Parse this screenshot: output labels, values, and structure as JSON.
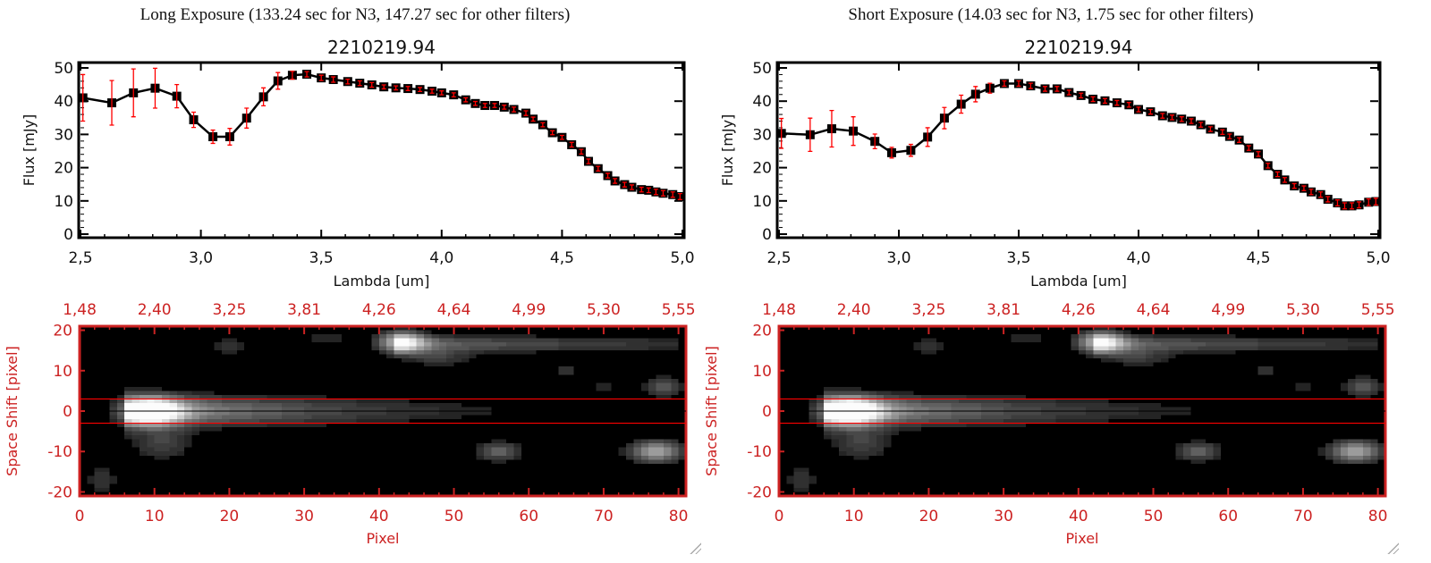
{
  "colors": {
    "axis": "#000000",
    "errorbar": "#ff0000",
    "image_axis": "#cc2222",
    "extraction_lines": "#ff0000",
    "center_line": "#000000"
  },
  "panels": [
    {
      "heading": "Long Exposure (133.24 sec for N3, 147.27 sec for other filters)"
    },
    {
      "heading": "Short Exposure (14.03 sec for N3, 1.75 sec for other filters)"
    }
  ],
  "chart_data": [
    {
      "type": "line",
      "title": "2210219.94",
      "xlabel": "Lambda [um]",
      "ylabel": "Flux [mJy]",
      "xlim": [
        2.5,
        5.0
      ],
      "ylim": [
        0,
        50
      ],
      "xticks": [
        "2,5",
        "3,0",
        "3,5",
        "4,0",
        "4,5",
        "5,0"
      ],
      "xtick_values": [
        2.5,
        3.0,
        3.5,
        4.0,
        4.5,
        5.0
      ],
      "yticks": [
        "0",
        "10",
        "20",
        "30",
        "40",
        "50"
      ],
      "ytick_values": [
        0,
        10,
        20,
        30,
        40,
        50
      ],
      "x": [
        2.51,
        2.63,
        2.72,
        2.81,
        2.9,
        2.97,
        3.05,
        3.12,
        3.19,
        3.26,
        3.32,
        3.38,
        3.44,
        3.5,
        3.55,
        3.61,
        3.66,
        3.71,
        3.76,
        3.81,
        3.86,
        3.91,
        3.96,
        4.0,
        4.05,
        4.1,
        4.14,
        4.18,
        4.22,
        4.26,
        4.3,
        4.35,
        4.38,
        4.42,
        4.46,
        4.5,
        4.54,
        4.58,
        4.61,
        4.65,
        4.69,
        4.72,
        4.76,
        4.79,
        4.83,
        4.86,
        4.89,
        4.92,
        4.96,
        4.99
      ],
      "y": [
        41.0,
        39.5,
        42.5,
        43.9,
        41.5,
        34.4,
        29.3,
        29.3,
        34.9,
        41.3,
        46.1,
        47.8,
        48.1,
        47.0,
        46.5,
        45.9,
        45.4,
        44.9,
        44.3,
        44.0,
        43.8,
        43.5,
        43.0,
        42.5,
        41.9,
        40.4,
        39.3,
        38.7,
        38.7,
        38.2,
        37.5,
        36.4,
        34.6,
        32.9,
        30.5,
        29.1,
        26.9,
        24.8,
        21.9,
        19.7,
        17.6,
        16.0,
        14.9,
        14.1,
        13.4,
        13.2,
        12.7,
        12.3,
        11.9,
        11.3
      ],
      "yerr": [
        7.0,
        6.7,
        7.2,
        6.0,
        3.5,
        2.3,
        2.0,
        2.5,
        3.0,
        2.7,
        2.5,
        1.2,
        0.8,
        0.8,
        0.8,
        0.7,
        0.7,
        0.7,
        0.6,
        0.6,
        0.6,
        0.6,
        0.6,
        0.6,
        0.6,
        0.6,
        0.6,
        0.6,
        0.6,
        0.6,
        0.7,
        0.7,
        0.6,
        0.6,
        0.6,
        0.6,
        0.7,
        0.7,
        0.7,
        0.7,
        0.7,
        0.7,
        0.7,
        0.7,
        0.7,
        0.7,
        0.8,
        0.8,
        0.8,
        0.9
      ]
    },
    {
      "type": "line",
      "title": "2210219.94",
      "xlabel": "Lambda [um]",
      "ylabel": "Flux [mJy]",
      "xlim": [
        2.5,
        5.0
      ],
      "ylim": [
        0,
        50
      ],
      "xticks": [
        "2,5",
        "3,0",
        "3,5",
        "4,0",
        "4,5",
        "5,0"
      ],
      "xtick_values": [
        2.5,
        3.0,
        3.5,
        4.0,
        4.5,
        5.0
      ],
      "yticks": [
        "0",
        "10",
        "20",
        "30",
        "40",
        "50"
      ],
      "ytick_values": [
        0,
        10,
        20,
        30,
        40,
        50
      ],
      "x": [
        2.51,
        2.63,
        2.72,
        2.81,
        2.9,
        2.97,
        3.05,
        3.12,
        3.19,
        3.26,
        3.32,
        3.38,
        3.44,
        3.5,
        3.55,
        3.61,
        3.66,
        3.71,
        3.76,
        3.81,
        3.86,
        3.91,
        3.96,
        4.0,
        4.05,
        4.1,
        4.14,
        4.18,
        4.22,
        4.26,
        4.3,
        4.35,
        4.38,
        4.42,
        4.46,
        4.5,
        4.54,
        4.58,
        4.61,
        4.65,
        4.69,
        4.72,
        4.76,
        4.79,
        4.83,
        4.86,
        4.89,
        4.92,
        4.96,
        4.99
      ],
      "y": [
        30.3,
        29.9,
        31.7,
        31.0,
        27.9,
        24.5,
        25.2,
        29.2,
        34.9,
        39.1,
        42.1,
        43.9,
        45.3,
        45.3,
        44.6,
        43.7,
        43.7,
        42.6,
        41.7,
        40.6,
        40.1,
        39.5,
        38.9,
        37.5,
        36.8,
        35.6,
        35.1,
        34.6,
        34.0,
        32.9,
        31.6,
        30.7,
        29.4,
        28.3,
        25.9,
        24.1,
        20.6,
        18.0,
        16.3,
        14.5,
        13.8,
        12.7,
        11.9,
        10.5,
        9.4,
        8.5,
        8.5,
        8.8,
        9.6,
        9.8
      ],
      "yerr": [
        4.5,
        5.0,
        5.5,
        4.3,
        2.2,
        1.6,
        1.8,
        2.8,
        3.2,
        2.7,
        2.3,
        1.5,
        0.8,
        0.8,
        0.8,
        0.7,
        0.7,
        0.7,
        0.7,
        0.7,
        0.7,
        0.7,
        0.7,
        0.7,
        0.7,
        0.7,
        0.7,
        0.7,
        0.7,
        0.7,
        0.7,
        0.7,
        0.7,
        0.7,
        0.7,
        0.7,
        0.7,
        0.7,
        0.7,
        0.7,
        0.7,
        0.8,
        0.8,
        0.8,
        0.9,
        0.9,
        0.9,
        0.9,
        1.0,
        1.0
      ]
    },
    {
      "type": "heatmap",
      "xlabel": "Pixel",
      "ylabel": "Space Shift [pixel]",
      "xlim": [
        0,
        81
      ],
      "ylim": [
        -21,
        21
      ],
      "xticks": [
        "0",
        "10",
        "20",
        "30",
        "40",
        "50",
        "60",
        "70",
        "80"
      ],
      "xtick_values": [
        0,
        10,
        20,
        30,
        40,
        50,
        60,
        70,
        80
      ],
      "top_ticks": [
        "1,48",
        "2,40",
        "3,25",
        "3,81",
        "4,26",
        "4,64",
        "4,99",
        "5,30",
        "5,55"
      ],
      "yticks": [
        "-20",
        "-10",
        "0",
        "10",
        "20"
      ],
      "ytick_values": [
        -20,
        -10,
        0,
        10,
        20
      ],
      "extraction_lines": [
        -3,
        3
      ],
      "center_line": 0,
      "colormap": "grayscale"
    },
    {
      "type": "heatmap",
      "xlabel": "Pixel",
      "ylabel": "Space Shift [pixel]",
      "xlim": [
        0,
        81
      ],
      "ylim": [
        -21,
        21
      ],
      "xticks": [
        "0",
        "10",
        "20",
        "30",
        "40",
        "50",
        "60",
        "70",
        "80"
      ],
      "xtick_values": [
        0,
        10,
        20,
        30,
        40,
        50,
        60,
        70,
        80
      ],
      "top_ticks": [
        "1,48",
        "2,40",
        "3,25",
        "3,81",
        "4,26",
        "4,64",
        "4,99",
        "5,30",
        "5,55"
      ],
      "yticks": [
        "-20",
        "-10",
        "0",
        "10",
        "20"
      ],
      "ytick_values": [
        -20,
        -10,
        0,
        10,
        20
      ],
      "extraction_lines": [
        -3,
        3
      ],
      "center_line": 0,
      "colormap": "grayscale"
    }
  ]
}
